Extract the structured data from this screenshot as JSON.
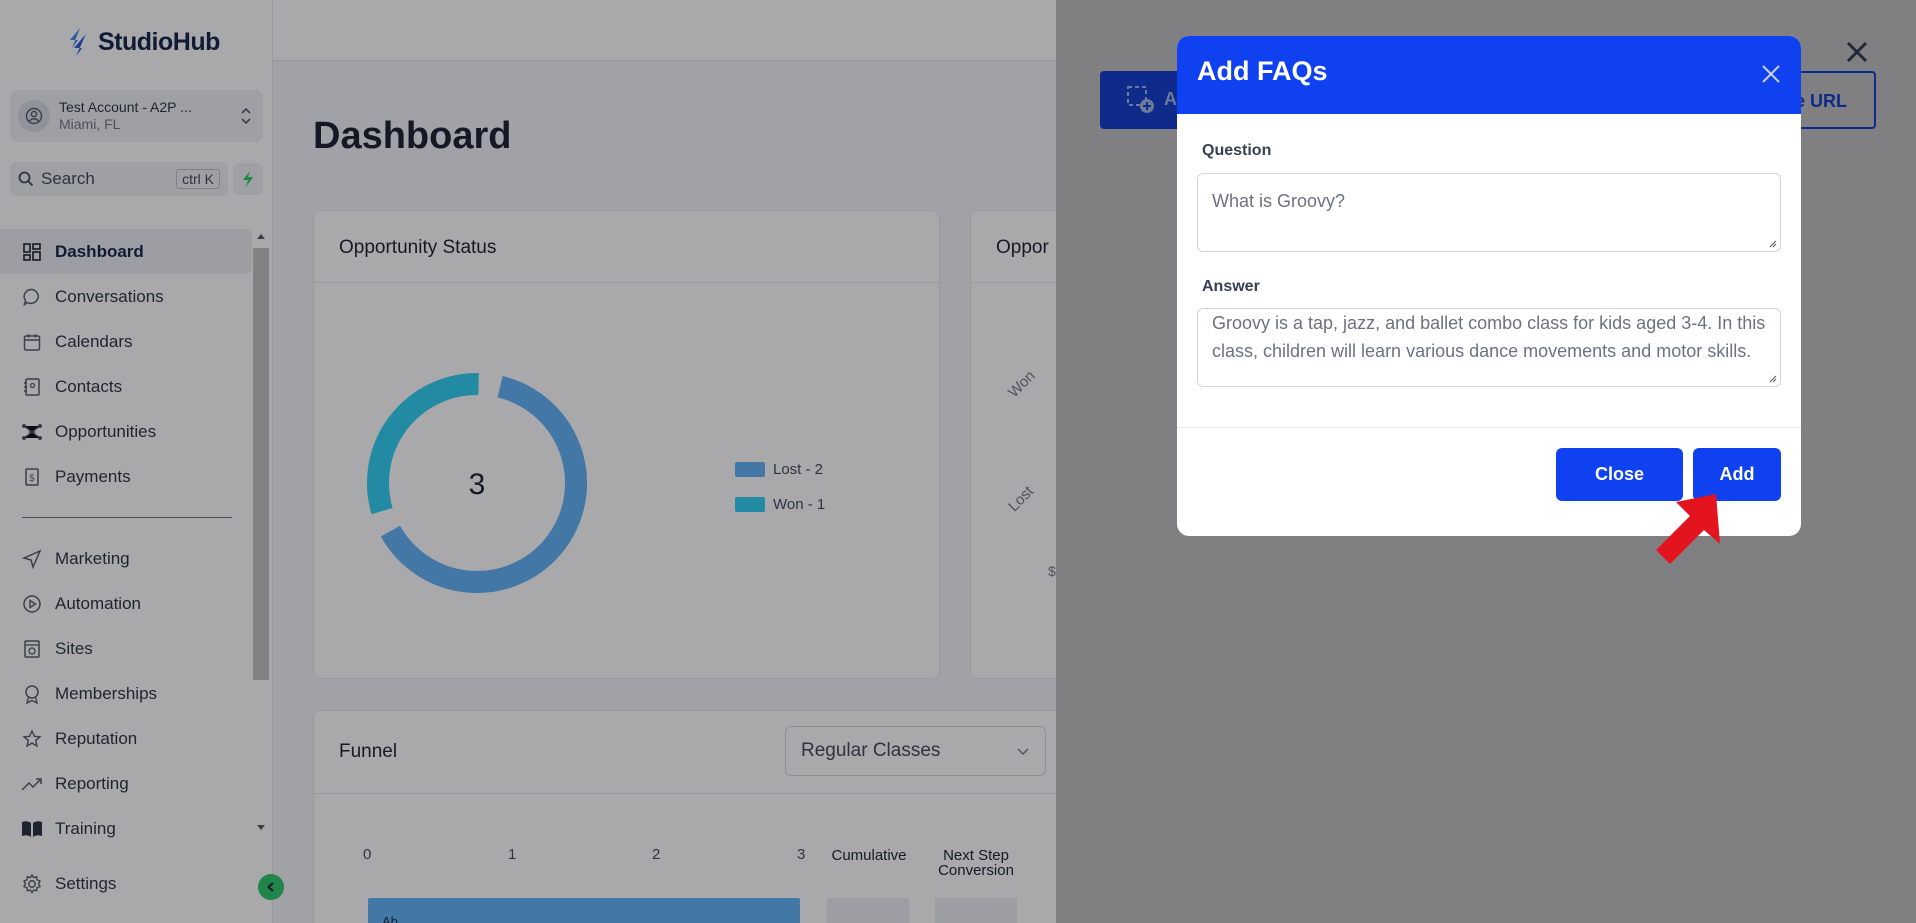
{
  "app": {
    "brand": "StudioHub"
  },
  "account": {
    "name": "Test Account - A2P ...",
    "location": "Miami, FL"
  },
  "search": {
    "label": "Search",
    "shortcut": "ctrl K"
  },
  "nav": {
    "primary": [
      {
        "label": "Dashboard",
        "icon": "dashboard-icon",
        "active": true
      },
      {
        "label": "Conversations",
        "icon": "chat-icon"
      },
      {
        "label": "Calendars",
        "icon": "calendar-icon"
      },
      {
        "label": "Contacts",
        "icon": "contacts-icon"
      },
      {
        "label": "Opportunities",
        "icon": "opportunities-icon"
      },
      {
        "label": "Payments",
        "icon": "payments-icon"
      }
    ],
    "secondary": [
      {
        "label": "Marketing",
        "icon": "send-icon"
      },
      {
        "label": "Automation",
        "icon": "automation-icon"
      },
      {
        "label": "Sites",
        "icon": "sites-icon"
      },
      {
        "label": "Memberships",
        "icon": "badge-icon"
      },
      {
        "label": "Reputation",
        "icon": "star-icon"
      },
      {
        "label": "Reporting",
        "icon": "trend-icon"
      },
      {
        "label": "Training",
        "icon": "book-icon"
      }
    ],
    "settings": "Settings"
  },
  "dashboard": {
    "title": "Dashboard",
    "opportunity_status": {
      "title": "Opportunity Status",
      "total": "3",
      "legend": [
        {
          "label": "Lost - 2",
          "color": "#5aaef5"
        },
        {
          "label": "Won - 1",
          "color": "#27cdf0"
        }
      ]
    },
    "opportunity_value": {
      "title": "Oppor",
      "labels": [
        "Won",
        "Lost"
      ],
      "axis_fragment": "$"
    },
    "funnel": {
      "title": "Funnel",
      "selected_pipeline": "Regular Classes",
      "ticks": [
        "0",
        "1",
        "2",
        "3"
      ],
      "headers": [
        "Cumulative",
        "Next Step\nConversion"
      ],
      "bar_label": "Ab..."
    }
  },
  "drawer": {
    "button_right_fragment": "e URL",
    "button_left_fragment": "A"
  },
  "modal": {
    "title": "Add FAQs",
    "question_label": "Question",
    "question_value": "What is Groovy?",
    "answer_label": "Answer",
    "answer_value": "Groovy is a tap, jazz, and ballet combo class for kids aged 3-4. In this class, children will learn various dance movements and motor skills.",
    "close_label": "Close",
    "add_label": "Add"
  },
  "chart_data": {
    "type": "pie",
    "title": "Opportunity Status",
    "categories": [
      "Lost",
      "Won"
    ],
    "values": [
      2,
      1
    ],
    "colors": [
      "#5aaef5",
      "#27cdf0"
    ],
    "center_label": "3"
  },
  "colors": {
    "primary": "#0f41f0",
    "accent_green": "#22c55e",
    "arrow": "#e3141f"
  }
}
